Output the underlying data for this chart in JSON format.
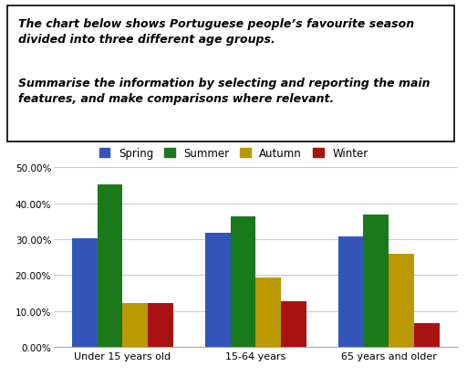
{
  "categories": [
    "Under 15 years old",
    "15-64 years",
    "65 years and older"
  ],
  "seasons": [
    "Spring",
    "Summer",
    "Autumn",
    "Winter"
  ],
  "values": {
    "Spring": [
      30.3,
      31.7,
      30.8
    ],
    "Summer": [
      45.2,
      36.3,
      36.8
    ],
    "Autumn": [
      12.2,
      19.2,
      25.8
    ],
    "Winter": [
      12.2,
      12.8,
      6.6
    ]
  },
  "colors": {
    "Spring": "#3355BB",
    "Summer": "#1A7A1A",
    "Autumn": "#BB9900",
    "Winter": "#AA1111"
  },
  "ylim": [
    0,
    50
  ],
  "yticks": [
    0,
    10,
    20,
    30,
    40,
    50
  ],
  "text_line1": "The chart below shows Portuguese people’s favourite season",
  "text_line2": "divided into three different age groups.",
  "text_line3": "Summarise the information by selecting and reporting the main",
  "text_line4": "features, and make comparisons where relevant.",
  "background_color": "#ffffff",
  "grid_color": "#cccccc",
  "bar_width": 0.19
}
